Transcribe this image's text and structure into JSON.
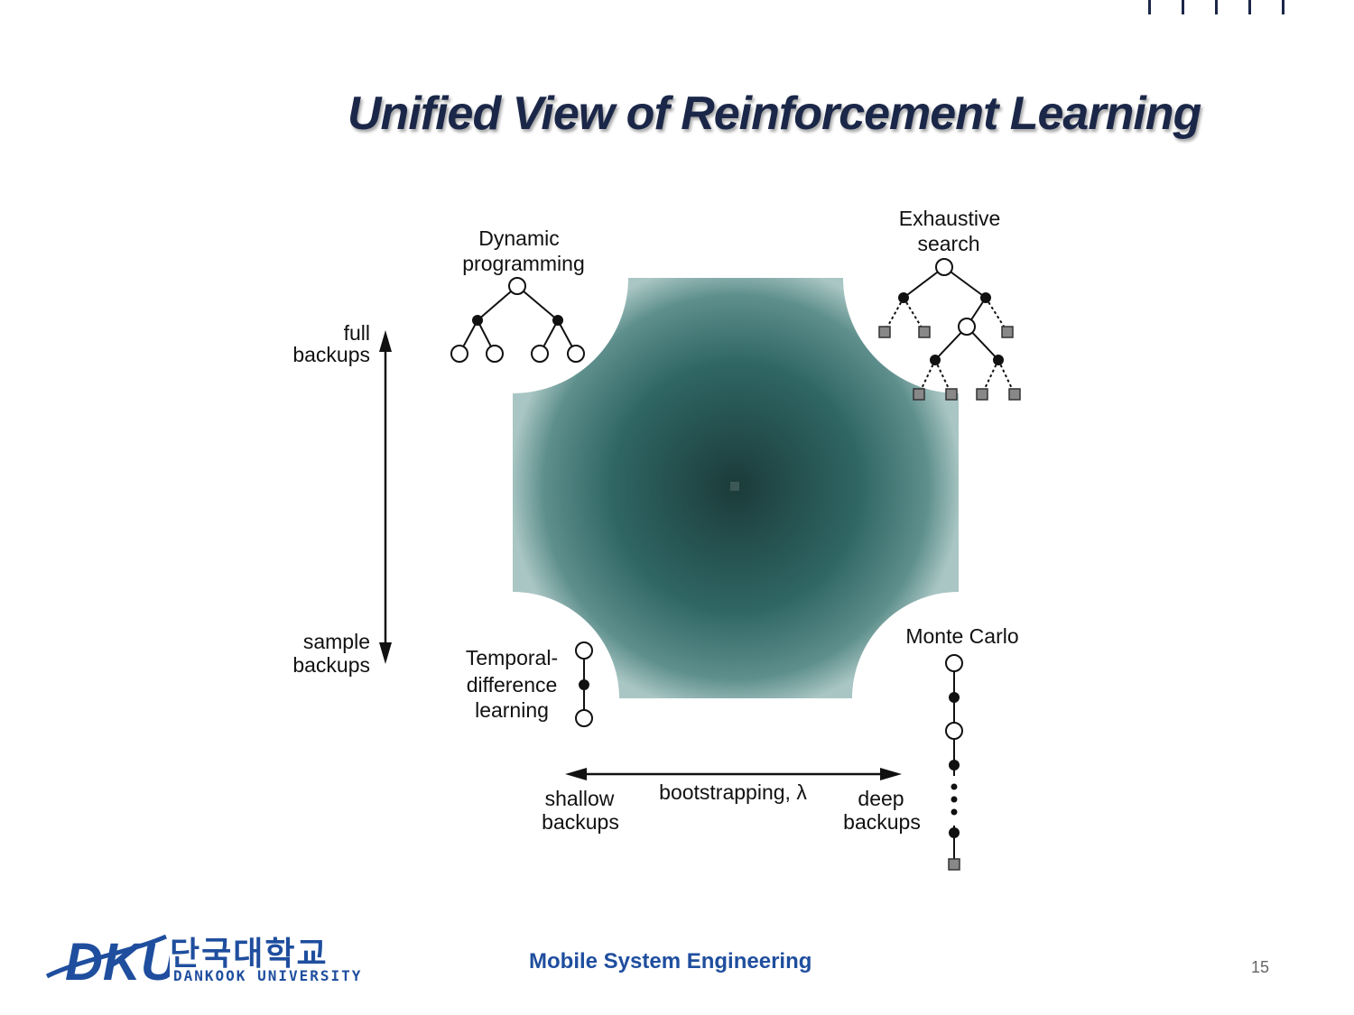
{
  "slide": {
    "title": "Unified View of Reinforcement Learning",
    "footer": "Mobile System Engineering",
    "page_number": "15"
  },
  "logo": {
    "mark": "DKU",
    "korean_name": "단국대학교",
    "english_name": "DANKOOK UNIVERSITY",
    "color": "#1f4e9e"
  },
  "diagram": {
    "corners": {
      "dynamic_programming": [
        "Dynamic",
        "programming"
      ],
      "exhaustive_search": [
        "Exhaustive",
        "search"
      ],
      "temporal_difference": [
        "Temporal-",
        "difference",
        "learning"
      ],
      "monte_carlo": [
        "Monte Carlo"
      ]
    },
    "vertical_axis": {
      "top": [
        "full",
        "backups"
      ],
      "bottom": [
        "sample",
        "backups"
      ]
    },
    "horizontal_axis": {
      "label": "bootstrapping, λ",
      "left": [
        "shallow",
        "backups"
      ],
      "right": [
        "deep",
        "backups"
      ]
    },
    "center_color": "#1b3b3a",
    "edge_color": "#6f9c99"
  }
}
